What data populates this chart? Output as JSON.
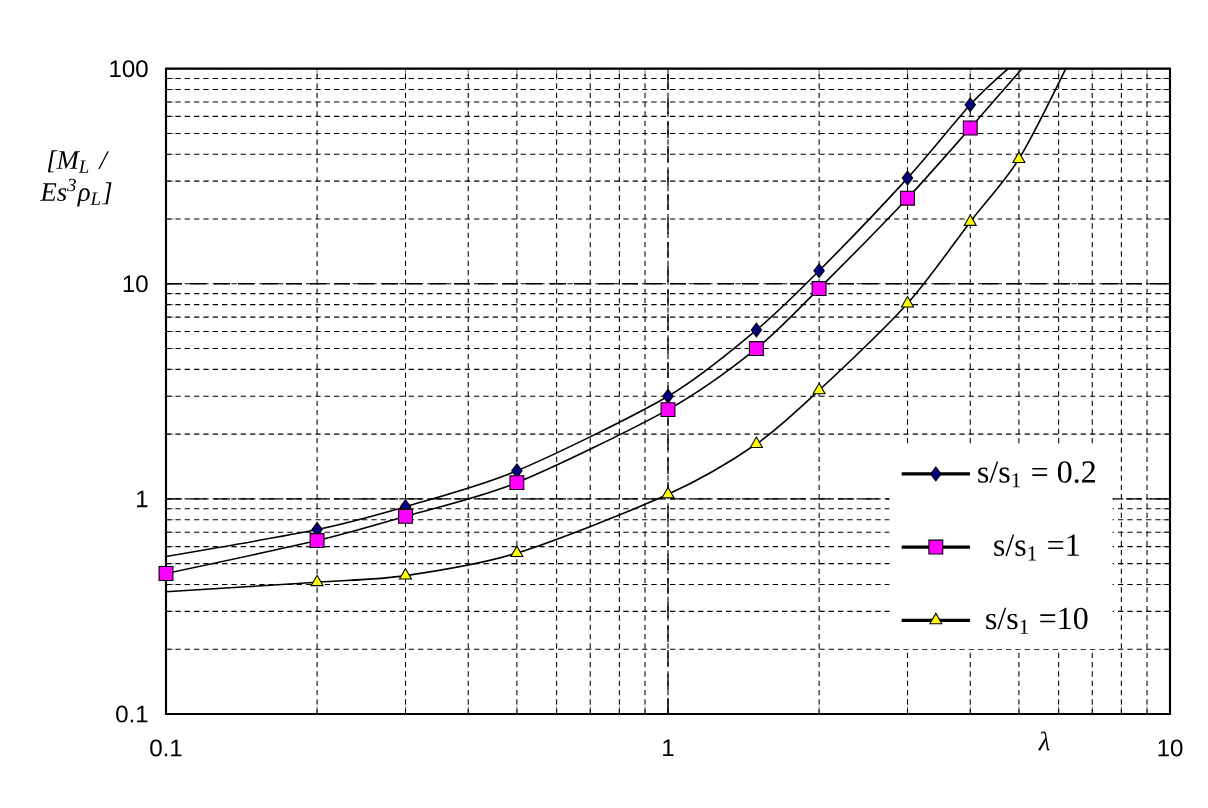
{
  "chart_data": {
    "type": "line",
    "ylabel": "[M$_{L}$ / Es$^{3}$ρ$_{L}$]",
    "xlabel": "λ",
    "log": "xy",
    "grid": true,
    "legend": "right",
    "xlim": [
      0.1,
      10
    ],
    "xticks": [
      0.1,
      1,
      10
    ],
    "ylim": [
      0.1,
      100
    ],
    "yticks": [
      0.1,
      1,
      10,
      100
    ],
    "series": [
      {
        "color": "#000000",
        "x": [
          0.1,
          0.2,
          0.3,
          0.5,
          1,
          1.5,
          2,
          3,
          4,
          4.76
        ],
        "values": [
          0.54,
          0.72,
          0.92,
          1.35,
          3.0,
          6.1,
          11.5,
          31,
          68,
          100
        ]
      },
      {
        "color": "#000000",
        "x": [
          0.1,
          0.2,
          0.3,
          0.5,
          1,
          1.5,
          2,
          3,
          4,
          5.07
        ],
        "values": [
          0.45,
          0.64,
          0.83,
          1.19,
          2.6,
          5.0,
          9.5,
          25,
          53,
          100
        ]
      },
      {
        "color": "#000000",
        "x": [
          0.1,
          0.2,
          0.3,
          0.5,
          1,
          1.5,
          2,
          3,
          4,
          5,
          6.2
        ],
        "values": [
          0.37,
          0.41,
          0.44,
          0.56,
          1.05,
          1.8,
          3.2,
          8.1,
          19.4,
          38,
          100
        ]
      },
      {
        "type": "scatter",
        "name": "s/s$_{1}$ = 0.2",
        "color": "#000080",
        "marker": "diamond",
        "x": [
          0.2,
          0.3,
          0.5,
          1,
          1.5,
          2,
          3,
          4
        ],
        "values": [
          0.72,
          0.92,
          1.35,
          3.0,
          6.1,
          11.5,
          31,
          68
        ]
      },
      {
        "type": "scatter",
        "name": "s/s$_{1}$ =1",
        "color": "#ff00ff",
        "marker": "square",
        "x": [
          0.1,
          0.2,
          0.3,
          0.5,
          1,
          1.5,
          2,
          3,
          4
        ],
        "values": [
          0.45,
          0.64,
          0.83,
          1.19,
          2.6,
          5.0,
          9.5,
          25,
          53
        ]
      },
      {
        "type": "scatter",
        "name": "s/s$_{1}$ =10",
        "color": "#ffff00",
        "marker": "triangle",
        "x": [
          0.2,
          0.3,
          0.5,
          1,
          1.5,
          2,
          3,
          4,
          5
        ],
        "values": [
          0.41,
          0.44,
          0.56,
          1.05,
          1.8,
          3.2,
          8.1,
          19.4,
          38
        ]
      }
    ]
  }
}
